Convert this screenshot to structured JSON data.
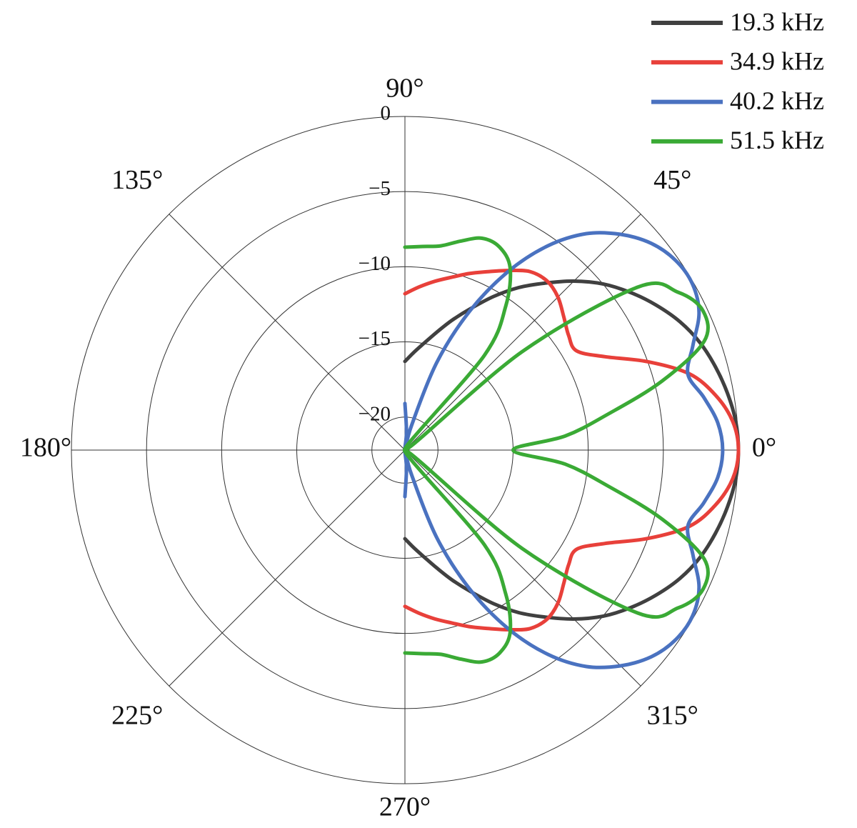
{
  "chart_data": {
    "type": "polar",
    "rlim": [
      -22.2,
      0
    ],
    "rticks": [
      {
        "value": -20,
        "label": "−20"
      },
      {
        "value": -15,
        "label": "−15"
      },
      {
        "value": -10,
        "label": "−10"
      },
      {
        "value": -5,
        "label": "−5"
      },
      0
    ],
    "thetaticks": [
      {
        "value": 0,
        "label": "0°"
      },
      {
        "value": 45,
        "label": "45°"
      },
      {
        "value": 90,
        "label": "90°"
      },
      {
        "value": 135,
        "label": "135°"
      },
      {
        "value": 180,
        "label": "180°"
      },
      {
        "value": 225,
        "label": "225°"
      },
      {
        "value": 270,
        "label": "270°"
      },
      {
        "value": 315,
        "label": "315°"
      }
    ],
    "grid": true,
    "legend": "upper right",
    "theta": [
      -90,
      -85,
      -80,
      -75,
      -70,
      -65,
      -60,
      -55,
      -50,
      -45,
      -40,
      -35,
      -30,
      -25,
      -20,
      -15,
      -10,
      -5,
      0,
      5,
      10,
      15,
      20,
      25,
      30,
      35,
      40,
      45,
      50,
      55,
      60,
      65,
      70,
      75,
      80,
      85,
      90
    ],
    "series": [
      {
        "name": "19.3 kHz",
        "color": "#404040",
        "values": [
          -16.3,
          -15.7,
          -15.0,
          -14.1,
          -13.0,
          -11.8,
          -10.4,
          -9.0,
          -7.7,
          -6.3,
          -5.0,
          -3.9,
          -2.9,
          -2.0,
          -1.3,
          -0.8,
          -0.4,
          -0.1,
          0,
          -0.1,
          -0.4,
          -0.8,
          -1.3,
          -2.0,
          -2.9,
          -3.9,
          -5.0,
          -6.3,
          -7.7,
          -9.0,
          -10.4,
          -11.8,
          -13.0,
          -14.1,
          -15.0,
          -15.7,
          -16.3
        ]
      },
      {
        "name": "34.9 kHz",
        "color": "#e8403a",
        "values": [
          -11.8,
          -11.3,
          -10.8,
          -10.3,
          -9.7,
          -9.1,
          -8.4,
          -7.7,
          -7.5,
          -7.8,
          -8.4,
          -8.9,
          -9.0,
          -7.5,
          -5.0,
          -2.6,
          -1.2,
          -0.3,
          0,
          -0.3,
          -1.2,
          -2.6,
          -5.0,
          -7.5,
          -9.0,
          -8.9,
          -8.4,
          -7.8,
          -7.5,
          -7.7,
          -8.4,
          -9.1,
          -9.7,
          -10.3,
          -10.8,
          -11.3,
          -11.8
        ]
      },
      {
        "name": "40.2 kHz",
        "color": "#4a72c0",
        "values": [
          -19.1,
          -21.0,
          -22.2,
          -20.5,
          -16.0,
          -12.0,
          -8.5,
          -5.6,
          -3.4,
          -1.9,
          -0.8,
          -0.2,
          -0.1,
          -0.6,
          -1.8,
          -2.7,
          -2.0,
          -1.3,
          -1.05,
          -1.3,
          -2.0,
          -2.7,
          -1.8,
          -0.6,
          -0.1,
          -0.2,
          -0.8,
          -1.9,
          -3.4,
          -5.6,
          -8.5,
          -12.0,
          -16.0,
          -20.5,
          -22.2,
          -21.0,
          -19.1
        ]
      },
      {
        "name": "51.5 kHz",
        "color": "#3aaa35",
        "values": [
          -8.7,
          -8.6,
          -8.4,
          -7.8,
          -7.2,
          -7.3,
          -8.2,
          -10.5,
          -14.0,
          -22.2,
          -12.0,
          -3.3,
          -1.2,
          -0.3,
          -1.0,
          -4.5,
          -8.5,
          -11.5,
          -15.0,
          -11.5,
          -8.5,
          -4.5,
          -1.0,
          -0.3,
          -1.2,
          -3.3,
          -12.0,
          -22.2,
          -14.0,
          -10.5,
          -8.2,
          -7.3,
          -7.2,
          -7.8,
          -8.4,
          -8.6,
          -8.7
        ]
      }
    ]
  }
}
